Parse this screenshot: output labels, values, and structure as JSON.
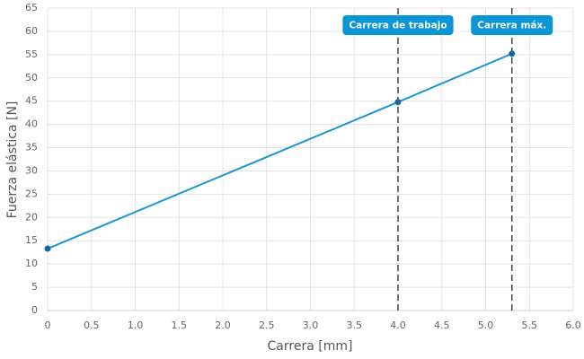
{
  "chart_data": {
    "type": "line",
    "x_label": "Carrera [mm]",
    "y_label": "Fuerza elástica [N]",
    "x": [
      0,
      4.0,
      5.3
    ],
    "values": [
      13.3,
      44.8,
      55.2
    ],
    "color": "#1a96d4",
    "marker_color": "#17699b",
    "xlim": [
      0,
      6
    ],
    "ylim": [
      0,
      65
    ],
    "xticks": [
      0,
      0.5,
      {
        "value": 1,
        "label": "1.0"
      },
      1.5,
      {
        "value": 2,
        "label": "2.0"
      },
      2.5,
      {
        "value": 3,
        "label": "3.0"
      },
      3.5,
      {
        "value": 4,
        "label": "4.0"
      },
      4.5,
      {
        "value": 5,
        "label": "5.0"
      },
      5.5,
      {
        "value": 6,
        "label": "6.0"
      }
    ],
    "yticks": [
      0,
      5,
      10,
      15,
      20,
      25,
      30,
      35,
      40,
      45,
      50,
      55,
      60,
      65
    ],
    "grid": true,
    "annotations": [
      {
        "x": 4.0,
        "label": "Carrera de trabajo"
      },
      {
        "x": 5.3,
        "label": "Carrera máx."
      }
    ],
    "annotation_color": "#0a96d6"
  }
}
